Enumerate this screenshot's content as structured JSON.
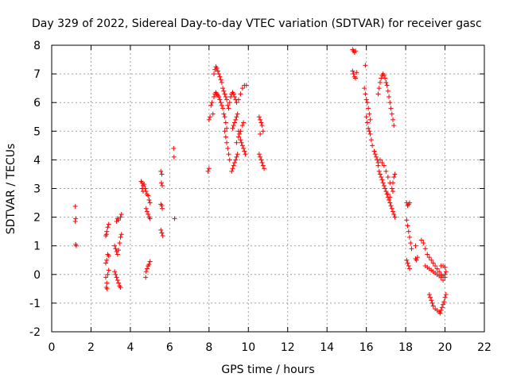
{
  "chart_data": {
    "type": "scatter",
    "title": "Day 329 of 2022, Sidereal Day-to-day VTEC variation (SDTVAR) for receiver gasc",
    "xlabel": "GPS time / hours",
    "ylabel": "SDTVAR / TECUs",
    "xlim": [
      0,
      22
    ],
    "ylim": [
      -2,
      8
    ],
    "xticks": [
      0,
      2,
      4,
      6,
      8,
      10,
      12,
      14,
      16,
      18,
      20,
      22
    ],
    "yticks": [
      -2,
      -1,
      0,
      1,
      2,
      3,
      4,
      5,
      6,
      7,
      8
    ],
    "grid": true,
    "marker": "+",
    "color": "#ff0000",
    "series": [
      {
        "name": "SDTVAR",
        "points": [
          [
            1.2,
            2.38
          ],
          [
            1.22,
            1.95
          ],
          [
            1.2,
            1.85
          ],
          [
            1.22,
            1.05
          ],
          [
            1.25,
            1.0
          ],
          [
            2.75,
            1.35
          ],
          [
            2.8,
            1.5
          ],
          [
            2.85,
            1.65
          ],
          [
            2.9,
            1.75
          ],
          [
            2.78,
            1.4
          ],
          [
            2.8,
            0.5
          ],
          [
            2.85,
            0.7
          ],
          [
            2.9,
            0.65
          ],
          [
            2.75,
            0.4
          ],
          [
            2.75,
            -0.1
          ],
          [
            2.8,
            -0.3
          ],
          [
            2.78,
            -0.45
          ],
          [
            2.85,
            0.0
          ],
          [
            2.9,
            0.15
          ],
          [
            2.82,
            -0.5
          ],
          [
            3.2,
            0.1
          ],
          [
            3.25,
            0.0
          ],
          [
            3.3,
            -0.1
          ],
          [
            3.35,
            -0.2
          ],
          [
            3.4,
            -0.3
          ],
          [
            3.45,
            -0.4
          ],
          [
            3.5,
            -0.45
          ],
          [
            3.2,
            1.0
          ],
          [
            3.25,
            0.9
          ],
          [
            3.3,
            0.8
          ],
          [
            3.35,
            0.7
          ],
          [
            3.4,
            0.85
          ],
          [
            3.45,
            1.1
          ],
          [
            3.5,
            1.3
          ],
          [
            3.55,
            1.4
          ],
          [
            3.3,
            1.85
          ],
          [
            3.4,
            1.9
          ],
          [
            3.5,
            2.0
          ],
          [
            3.55,
            2.1
          ],
          [
            3.35,
            1.95
          ],
          [
            4.55,
            3.25
          ],
          [
            4.6,
            3.2
          ],
          [
            4.65,
            3.1
          ],
          [
            4.6,
            3.0
          ],
          [
            4.65,
            2.9
          ],
          [
            4.7,
            3.15
          ],
          [
            4.75,
            3.0
          ],
          [
            4.8,
            2.9
          ],
          [
            4.85,
            2.8
          ],
          [
            4.9,
            2.75
          ],
          [
            4.95,
            2.6
          ],
          [
            5.0,
            2.5
          ],
          [
            4.8,
            2.3
          ],
          [
            4.85,
            2.2
          ],
          [
            4.9,
            2.1
          ],
          [
            4.95,
            2.0
          ],
          [
            5.0,
            1.95
          ],
          [
            4.8,
            0.1
          ],
          [
            4.85,
            0.2
          ],
          [
            4.9,
            0.3
          ],
          [
            4.95,
            0.35
          ],
          [
            5.0,
            0.45
          ],
          [
            4.78,
            -0.1
          ],
          [
            5.55,
            3.6
          ],
          [
            5.6,
            3.5
          ],
          [
            5.58,
            3.2
          ],
          [
            5.62,
            3.1
          ],
          [
            5.55,
            2.45
          ],
          [
            5.6,
            2.4
          ],
          [
            5.62,
            2.3
          ],
          [
            5.55,
            1.55
          ],
          [
            5.6,
            1.45
          ],
          [
            5.65,
            1.35
          ],
          [
            6.2,
            4.4
          ],
          [
            6.22,
            4.1
          ],
          [
            6.25,
            1.95
          ],
          [
            7.95,
            3.6
          ],
          [
            8.0,
            3.7
          ],
          [
            8.0,
            5.4
          ],
          [
            8.05,
            5.5
          ],
          [
            8.1,
            5.9
          ],
          [
            8.15,
            6.0
          ],
          [
            8.2,
            5.6
          ],
          [
            8.25,
            6.2
          ],
          [
            8.3,
            6.3
          ],
          [
            8.35,
            6.35
          ],
          [
            8.4,
            6.3
          ],
          [
            8.45,
            6.25
          ],
          [
            8.5,
            6.2
          ],
          [
            8.55,
            6.1
          ],
          [
            8.6,
            6.0
          ],
          [
            8.65,
            5.9
          ],
          [
            8.7,
            5.8
          ],
          [
            8.75,
            5.6
          ],
          [
            8.8,
            5.5
          ],
          [
            8.85,
            5.3
          ],
          [
            8.9,
            5.1
          ],
          [
            8.8,
            5.0
          ],
          [
            8.85,
            4.8
          ],
          [
            8.9,
            4.6
          ],
          [
            8.95,
            4.4
          ],
          [
            9.0,
            4.2
          ],
          [
            9.05,
            4.0
          ],
          [
            8.25,
            7.0
          ],
          [
            8.3,
            7.15
          ],
          [
            8.35,
            7.25
          ],
          [
            8.4,
            7.2
          ],
          [
            8.45,
            7.1
          ],
          [
            8.5,
            7.0
          ],
          [
            8.55,
            6.9
          ],
          [
            8.6,
            6.8
          ],
          [
            8.65,
            6.7
          ],
          [
            8.7,
            6.5
          ],
          [
            8.75,
            6.4
          ],
          [
            8.8,
            6.3
          ],
          [
            8.85,
            6.2
          ],
          [
            8.9,
            6.1
          ],
          [
            8.95,
            5.9
          ],
          [
            9.0,
            5.8
          ],
          [
            9.05,
            6.0
          ],
          [
            9.1,
            6.2
          ],
          [
            9.15,
            6.3
          ],
          [
            9.2,
            6.35
          ],
          [
            9.25,
            6.3
          ],
          [
            9.3,
            6.2
          ],
          [
            9.35,
            6.1
          ],
          [
            9.4,
            6.0
          ],
          [
            9.5,
            6.1
          ],
          [
            9.6,
            6.3
          ],
          [
            9.7,
            6.5
          ],
          [
            9.8,
            6.6
          ],
          [
            9.9,
            6.6
          ],
          [
            9.15,
            3.6
          ],
          [
            9.2,
            3.7
          ],
          [
            9.25,
            3.8
          ],
          [
            9.3,
            3.9
          ],
          [
            9.35,
            4.0
          ],
          [
            9.4,
            4.1
          ],
          [
            9.45,
            4.2
          ],
          [
            9.2,
            5.1
          ],
          [
            9.25,
            5.2
          ],
          [
            9.3,
            5.3
          ],
          [
            9.35,
            5.4
          ],
          [
            9.4,
            5.5
          ],
          [
            9.45,
            5.6
          ],
          [
            9.5,
            5.0
          ],
          [
            9.55,
            4.9
          ],
          [
            9.6,
            4.7
          ],
          [
            9.65,
            4.6
          ],
          [
            9.7,
            4.5
          ],
          [
            9.75,
            4.4
          ],
          [
            9.8,
            4.3
          ],
          [
            9.85,
            4.2
          ],
          [
            9.4,
            4.6
          ],
          [
            9.5,
            4.8
          ],
          [
            9.6,
            5.0
          ],
          [
            9.7,
            5.2
          ],
          [
            9.75,
            5.3
          ],
          [
            10.55,
            5.5
          ],
          [
            10.6,
            5.4
          ],
          [
            10.65,
            5.3
          ],
          [
            10.7,
            5.2
          ],
          [
            10.75,
            5.0
          ],
          [
            10.6,
            4.9
          ],
          [
            10.55,
            4.2
          ],
          [
            10.6,
            4.1
          ],
          [
            10.65,
            4.0
          ],
          [
            10.7,
            3.9
          ],
          [
            10.75,
            3.8
          ],
          [
            10.8,
            3.7
          ],
          [
            15.3,
            7.85
          ],
          [
            15.35,
            7.8
          ],
          [
            15.4,
            7.75
          ],
          [
            15.45,
            7.8
          ],
          [
            15.3,
            7.1
          ],
          [
            15.35,
            7.0
          ],
          [
            15.4,
            6.9
          ],
          [
            15.45,
            6.85
          ],
          [
            15.5,
            7.05
          ],
          [
            15.95,
            7.3
          ],
          [
            15.9,
            6.5
          ],
          [
            15.95,
            6.3
          ],
          [
            16.0,
            6.1
          ],
          [
            16.05,
            6.0
          ],
          [
            16.1,
            5.8
          ],
          [
            16.15,
            5.6
          ],
          [
            16.2,
            5.4
          ],
          [
            16.0,
            5.5
          ],
          [
            16.05,
            5.3
          ],
          [
            16.1,
            5.1
          ],
          [
            16.15,
            5.0
          ],
          [
            16.2,
            4.9
          ],
          [
            16.25,
            4.7
          ],
          [
            16.3,
            4.5
          ],
          [
            16.4,
            4.3
          ],
          [
            16.45,
            4.2
          ],
          [
            16.5,
            4.1
          ],
          [
            16.55,
            4.0
          ],
          [
            16.6,
            3.9
          ],
          [
            16.6,
            3.8
          ],
          [
            16.65,
            3.6
          ],
          [
            16.7,
            3.5
          ],
          [
            16.75,
            3.4
          ],
          [
            16.8,
            3.3
          ],
          [
            16.85,
            3.2
          ],
          [
            16.9,
            3.1
          ],
          [
            16.95,
            3.0
          ],
          [
            17.0,
            2.9
          ],
          [
            17.05,
            2.8
          ],
          [
            17.1,
            2.7
          ],
          [
            17.15,
            2.6
          ],
          [
            17.2,
            2.5
          ],
          [
            17.25,
            2.4
          ],
          [
            17.3,
            2.3
          ],
          [
            17.35,
            2.2
          ],
          [
            17.4,
            2.1
          ],
          [
            17.45,
            2.0
          ],
          [
            16.7,
            4.0
          ],
          [
            16.8,
            3.9
          ],
          [
            16.9,
            3.8
          ],
          [
            17.0,
            3.6
          ],
          [
            17.1,
            3.4
          ],
          [
            17.2,
            3.2
          ],
          [
            17.3,
            3.0
          ],
          [
            17.35,
            3.2
          ],
          [
            17.4,
            3.4
          ],
          [
            17.45,
            3.5
          ],
          [
            17.35,
            2.9
          ],
          [
            17.2,
            2.7
          ],
          [
            17.1,
            2.8
          ],
          [
            16.6,
            6.3
          ],
          [
            16.65,
            6.5
          ],
          [
            16.7,
            6.7
          ],
          [
            16.75,
            6.85
          ],
          [
            16.8,
            6.95
          ],
          [
            16.85,
            7.0
          ],
          [
            16.9,
            6.95
          ],
          [
            16.95,
            6.85
          ],
          [
            17.0,
            6.7
          ],
          [
            17.05,
            6.6
          ],
          [
            17.1,
            6.4
          ],
          [
            17.15,
            6.2
          ],
          [
            17.2,
            6.0
          ],
          [
            17.25,
            5.8
          ],
          [
            17.3,
            5.6
          ],
          [
            17.35,
            5.4
          ],
          [
            17.4,
            5.2
          ],
          [
            18.05,
            2.5
          ],
          [
            18.1,
            2.4
          ],
          [
            18.15,
            2.45
          ],
          [
            18.2,
            2.5
          ],
          [
            18.05,
            1.9
          ],
          [
            18.1,
            1.7
          ],
          [
            18.15,
            1.5
          ],
          [
            18.2,
            1.3
          ],
          [
            18.25,
            1.1
          ],
          [
            18.3,
            0.9
          ],
          [
            18.05,
            0.5
          ],
          [
            18.1,
            0.4
          ],
          [
            18.15,
            0.3
          ],
          [
            18.2,
            0.2
          ],
          [
            18.5,
            0.55
          ],
          [
            18.55,
            0.5
          ],
          [
            18.6,
            0.6
          ],
          [
            18.5,
            1.0
          ],
          [
            18.8,
            1.2
          ],
          [
            18.9,
            1.1
          ],
          [
            19.0,
            0.9
          ],
          [
            19.1,
            0.7
          ],
          [
            19.2,
            0.6
          ],
          [
            19.3,
            0.5
          ],
          [
            19.4,
            0.4
          ],
          [
            19.5,
            0.3
          ],
          [
            19.6,
            0.2
          ],
          [
            19.7,
            0.1
          ],
          [
            19.8,
            0.0
          ],
          [
            19.9,
            -0.05
          ],
          [
            20.0,
            0.0
          ],
          [
            19.0,
            0.3
          ],
          [
            19.1,
            0.25
          ],
          [
            19.2,
            0.2
          ],
          [
            19.3,
            0.15
          ],
          [
            19.4,
            0.1
          ],
          [
            19.5,
            0.05
          ],
          [
            19.6,
            0.0
          ],
          [
            19.7,
            -0.05
          ],
          [
            19.8,
            -0.1
          ],
          [
            19.9,
            -0.2
          ],
          [
            20.0,
            -0.1
          ],
          [
            20.05,
            0.1
          ],
          [
            20.0,
            0.25
          ],
          [
            19.9,
            0.3
          ],
          [
            19.8,
            0.3
          ],
          [
            19.2,
            -0.7
          ],
          [
            19.25,
            -0.8
          ],
          [
            19.3,
            -0.9
          ],
          [
            19.35,
            -1.0
          ],
          [
            19.4,
            -1.1
          ],
          [
            19.5,
            -1.2
          ],
          [
            19.6,
            -1.25
          ],
          [
            19.7,
            -1.3
          ],
          [
            19.75,
            -1.35
          ],
          [
            19.8,
            -1.25
          ],
          [
            19.85,
            -1.15
          ],
          [
            19.9,
            -1.05
          ],
          [
            19.95,
            -0.95
          ],
          [
            20.0,
            -0.8
          ],
          [
            20.05,
            -0.7
          ]
        ]
      }
    ]
  }
}
